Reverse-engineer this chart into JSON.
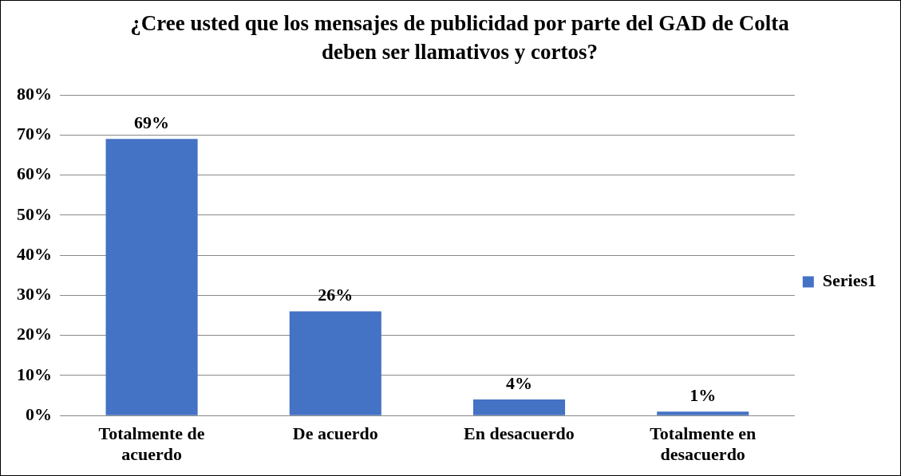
{
  "chart_data": {
    "type": "bar",
    "title": "¿Cree usted que los mensajes de publicidad por parte del GAD de Colta deben ser llamativos y cortos?",
    "categories": [
      "Totalmente de acuerdo",
      "De acuerdo",
      "En desacuerdo",
      "Totalmente en desacuerdo"
    ],
    "series": [
      {
        "name": "Series1",
        "color": "#4472c4",
        "values": [
          69,
          26,
          4,
          1
        ],
        "value_labels": [
          "69%",
          "26%",
          "4%",
          "1%"
        ]
      }
    ],
    "ylim": [
      0,
      80
    ],
    "yticks": [
      {
        "value": 0,
        "label": "0%"
      },
      {
        "value": 10,
        "label": "10%"
      },
      {
        "value": 20,
        "label": "20%"
      },
      {
        "value": 30,
        "label": "30%"
      },
      {
        "value": 40,
        "label": "40%"
      },
      {
        "value": 50,
        "label": "50%"
      },
      {
        "value": 60,
        "label": "60%"
      },
      {
        "value": 70,
        "label": "70%"
      },
      {
        "value": 80,
        "label": "80%"
      }
    ],
    "grid": "y",
    "legend": "right"
  }
}
